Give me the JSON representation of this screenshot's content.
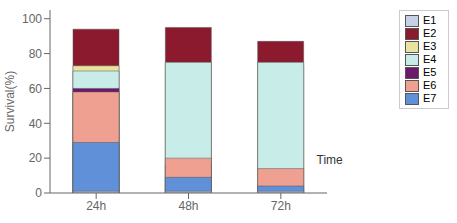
{
  "chart_data": {
    "type": "bar",
    "categories": [
      "24h",
      "48h",
      "72h"
    ],
    "series": [
      {
        "name": "E2",
        "color": "#8b1a2e",
        "values": [
          94,
          95,
          87
        ]
      },
      {
        "name": "E3",
        "color": "#e8e4a0",
        "values": [
          73,
          73,
          73
        ]
      },
      {
        "name": "E4",
        "color": "#c8ece8",
        "values": [
          70,
          75,
          75
        ]
      },
      {
        "name": "E5",
        "color": "#6b1a6b",
        "values": [
          60,
          16,
          0
        ]
      },
      {
        "name": "E6",
        "color": "#f0a090",
        "values": [
          58,
          20,
          14
        ]
      },
      {
        "name": "E7",
        "color": "#6090d8",
        "values": [
          29,
          9,
          4
        ]
      },
      {
        "name": "E1",
        "color": "#c8d0e8",
        "values": [
          1,
          1,
          1
        ]
      }
    ],
    "ylabel": "Survival(%)",
    "annotation": "Time",
    "ylim": [
      0,
      105
    ],
    "yticks": [
      0,
      20,
      40,
      60,
      80,
      100
    ],
    "grid": false,
    "legend": "right"
  }
}
